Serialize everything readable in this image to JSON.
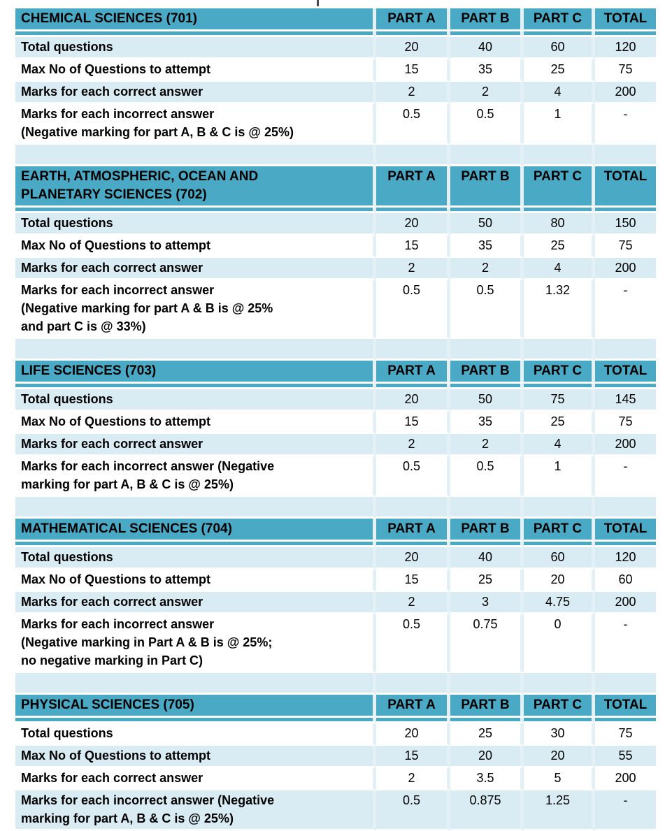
{
  "page": {
    "description": "Exam pattern tables for five science subjects",
    "top_fragment_present": true
  },
  "theme": {
    "header_teal": "#4aa9c4",
    "band_light_blue": "#d9ecf3",
    "row_white": "#ffffff",
    "divider": "#e3f1f7",
    "text": "#000000"
  },
  "column_headers": [
    "PART A",
    "PART B",
    "PART C",
    "TOTAL"
  ],
  "tables": [
    {
      "title": "CHEMICAL SCIENCES (701)",
      "rows": [
        {
          "label": "Total questions",
          "values": [
            "20",
            "40",
            "60",
            "120"
          ],
          "shade": "band"
        },
        {
          "label": "Max No of Questions to attempt",
          "values": [
            "15",
            "35",
            "25",
            "75"
          ],
          "shade": "white"
        },
        {
          "label": "Marks for each correct answer",
          "values": [
            "2",
            "2",
            "4",
            "200"
          ],
          "shade": "band"
        },
        {
          "label": "Marks for each incorrect answer\n(Negative marking for part A, B & C is @ 25%)",
          "values": [
            "0.5",
            "0.5",
            "1",
            "-"
          ],
          "shade": "white"
        }
      ],
      "spacer_after": true
    },
    {
      "title": "EARTH, ATMOSPHERIC, OCEAN AND\nPLANETARY SCIENCES (702)",
      "rows": [
        {
          "label": "Total questions",
          "values": [
            "20",
            "50",
            "80",
            "150"
          ],
          "shade": "band"
        },
        {
          "label": "Max No of Questions to attempt",
          "values": [
            "15",
            "35",
            "25",
            "75"
          ],
          "shade": "white"
        },
        {
          "label": "Marks for each correct answer",
          "values": [
            "2",
            "2",
            "4",
            "200"
          ],
          "shade": "band"
        },
        {
          "label": "Marks for each incorrect answer\n(Negative marking for part A & B is @ 25%\nand part C is @ 33%)",
          "values": [
            "0.5",
            "0.5",
            "1.32",
            "-"
          ],
          "shade": "white"
        }
      ],
      "spacer_after": true
    },
    {
      "title": "LIFE SCIENCES (703)",
      "rows": [
        {
          "label": "Total questions",
          "values": [
            "20",
            "50",
            "75",
            "145"
          ],
          "shade": "band"
        },
        {
          "label": "Max No of Questions to attempt",
          "values": [
            "15",
            "35",
            "25",
            "75"
          ],
          "shade": "white"
        },
        {
          "label": "Marks for each correct answer",
          "values": [
            "2",
            "2",
            "4",
            "200"
          ],
          "shade": "band"
        },
        {
          "label": "Marks for each incorrect answer (Negative\nmarking for part A, B & C is @ 25%)",
          "values": [
            "0.5",
            "0.5",
            "1",
            "-"
          ],
          "shade": "white"
        }
      ],
      "spacer_after": true
    },
    {
      "title": "MATHEMATICAL SCIENCES (704)",
      "rows": [
        {
          "label": "Total questions",
          "values": [
            "20",
            "40",
            "60",
            "120"
          ],
          "shade": "band"
        },
        {
          "label": "Max No of Questions to attempt",
          "values": [
            "15",
            "25",
            "20",
            "60"
          ],
          "shade": "white"
        },
        {
          "label": "Marks for each correct answer",
          "values": [
            "2",
            "3",
            "4.75",
            "200"
          ],
          "shade": "band"
        },
        {
          "label": "Marks for each incorrect answer\n(Negative marking in Part A & B is @ 25%;\nno negative marking in Part C)",
          "values": [
            "0.5",
            "0.75",
            "0",
            "-"
          ],
          "shade": "white"
        }
      ],
      "spacer_after": true
    },
    {
      "title": "PHYSICAL SCIENCES (705)",
      "rows": [
        {
          "label": "Total questions",
          "values": [
            "20",
            "25",
            "30",
            "75"
          ],
          "shade": "white"
        },
        {
          "label": "Max No of Questions to attempt",
          "values": [
            "15",
            "20",
            "20",
            "55"
          ],
          "shade": "band"
        },
        {
          "label": "Marks for each correct answer",
          "values": [
            "2",
            "3.5",
            "5",
            "200"
          ],
          "shade": "white"
        },
        {
          "label": "Marks for each incorrect answer (Negative\nmarking for part A, B & C is @ 25%)",
          "values": [
            "0.5",
            "0.875",
            "1.25",
            "-"
          ],
          "shade": "band"
        }
      ],
      "spacer_after": false
    }
  ]
}
